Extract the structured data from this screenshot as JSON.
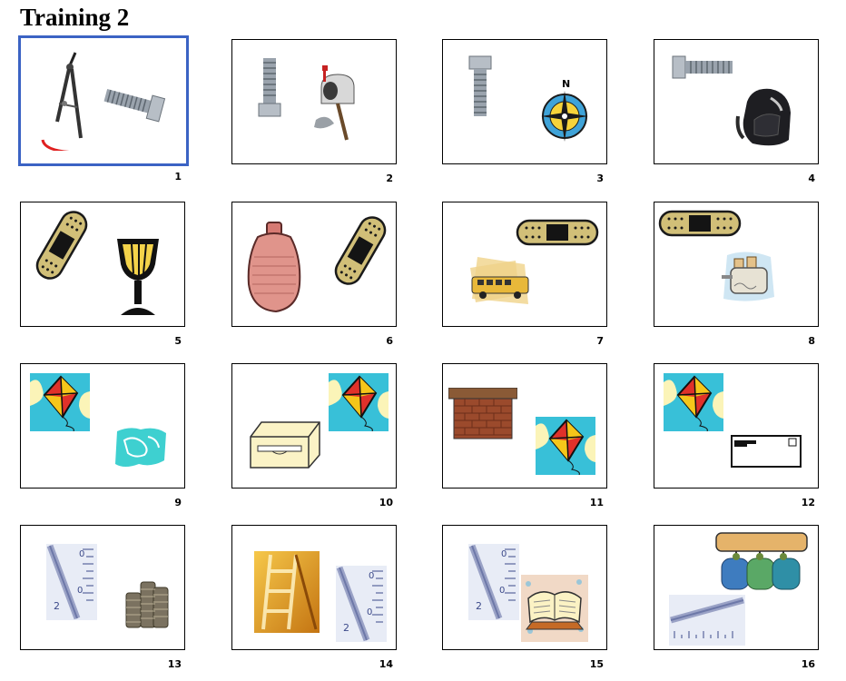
{
  "title": "Training 2",
  "trials": [
    {
      "number": "1",
      "images": [
        "compass-drawing-icon",
        "bolt-icon"
      ],
      "selected": true
    },
    {
      "number": "2",
      "images": [
        "bolt-icon",
        "mailbox-icon"
      ]
    },
    {
      "number": "3",
      "images": [
        "bolt-icon",
        "compass-rose-icon"
      ]
    },
    {
      "number": "4",
      "images": [
        "bolt-icon",
        "backpack-icon"
      ]
    },
    {
      "number": "5",
      "images": [
        "bandage-icon",
        "goblet-icon"
      ]
    },
    {
      "number": "6",
      "images": [
        "hot-water-bottle-icon",
        "bandage-icon"
      ]
    },
    {
      "number": "7",
      "images": [
        "bandage-icon",
        "school-bus-icon"
      ]
    },
    {
      "number": "8",
      "images": [
        "bandage-icon",
        "toaster-icon"
      ]
    },
    {
      "number": "9",
      "images": [
        "kite-icon",
        "map-icon"
      ]
    },
    {
      "number": "10",
      "images": [
        "disk-drive-icon",
        "kite-icon"
      ]
    },
    {
      "number": "11",
      "images": [
        "brick-wall-icon",
        "kite-icon"
      ]
    },
    {
      "number": "12",
      "images": [
        "kite-icon",
        "envelope-icon"
      ]
    },
    {
      "number": "13",
      "images": [
        "thermometer-icon",
        "coins-icon"
      ]
    },
    {
      "number": "14",
      "images": [
        "ladder-icon",
        "thermometer-icon"
      ]
    },
    {
      "number": "15",
      "images": [
        "thermometer-icon",
        "book-icon"
      ]
    },
    {
      "number": "16",
      "images": [
        "coat-rack-mugs-icon",
        "thermometer-icon"
      ]
    }
  ],
  "colors": {
    "selection_border": "#3b63c4"
  }
}
